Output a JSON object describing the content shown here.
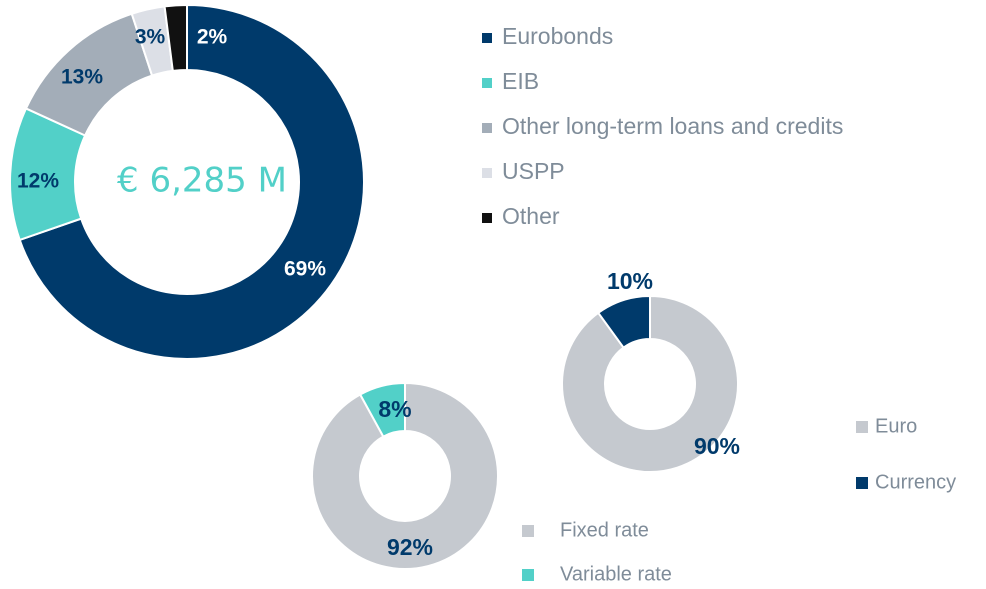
{
  "chart_data": [
    {
      "type": "pie",
      "center_label": "€ 6,285 M",
      "categories": [
        "Eurobonds",
        "EIB",
        "Other long-term loans and credits",
        "USPP",
        "Other"
      ],
      "values": [
        69,
        12,
        13,
        3,
        2
      ],
      "value_labels": [
        "69%",
        "12%",
        "13%",
        "3%",
        "2%"
      ],
      "colors": [
        "#003a6b",
        "#52d0c8",
        "#a3adb8",
        "#dcdfe6",
        "#111111"
      ]
    },
    {
      "type": "pie",
      "categories": [
        "Euro",
        "Currency"
      ],
      "values": [
        90,
        10
      ],
      "value_labels": [
        "90%",
        "10%"
      ],
      "colors": [
        "#c5c9cf",
        "#003a6b"
      ]
    },
    {
      "type": "pie",
      "categories": [
        "Fixed rate",
        "Variable rate"
      ],
      "values": [
        92,
        8
      ],
      "value_labels": [
        "92%",
        "8%"
      ],
      "colors": [
        "#c5c9cf",
        "#52d0c8"
      ]
    }
  ]
}
